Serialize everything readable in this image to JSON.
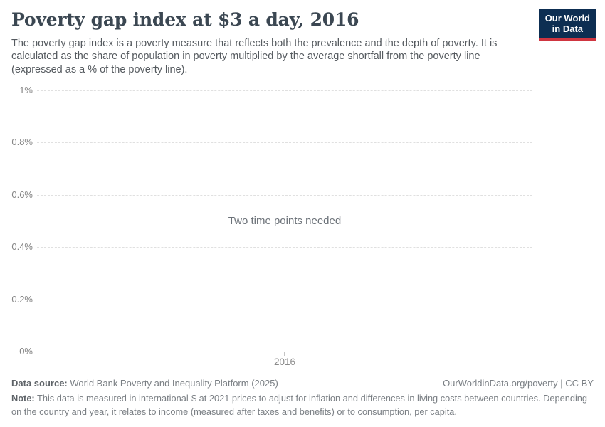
{
  "header": {
    "title": "Poverty gap index at $3 a day, 2016",
    "subtitle": "The poverty gap index is a poverty measure that reflects both the prevalence and the depth of poverty. It is calculated as the share of population in poverty multiplied by the average shortfall from the poverty line (expressed as a % of the poverty line).",
    "logo": {
      "line1": "Our World",
      "line2": "in Data",
      "bg_color": "#0d2e52",
      "accent_color": "#cf3540"
    }
  },
  "chart_data": {
    "type": "line",
    "title": "Poverty gap index at $3 a day, 2016",
    "series": [],
    "message": "Two time points needed",
    "xlabel": "",
    "ylabel": "",
    "x_ticks": [
      "2016"
    ],
    "y_ticks": [
      "1%",
      "0.8%",
      "0.6%",
      "0.4%",
      "0.2%",
      "0%"
    ],
    "ylim": [
      0,
      1
    ],
    "y_unit": "%",
    "grid": "horizontal dashed, on",
    "legend_position": "none",
    "notes": "Empty plot area; chart shows only a centered message because two time points are required to draw the line."
  },
  "footer": {
    "datasource_label": "Data source:",
    "datasource_value": " World Bank Poverty and Inequality Platform (2025)",
    "link": "OurWorldinData.org/poverty | CC BY",
    "note_label": "Note:",
    "note_value": " This data is measured in international-$ at 2021 prices to adjust for inflation and differences in living costs between countries. Depending on the country and year, it relates to income (measured after taxes and benefits) or to consumption, per capita."
  }
}
